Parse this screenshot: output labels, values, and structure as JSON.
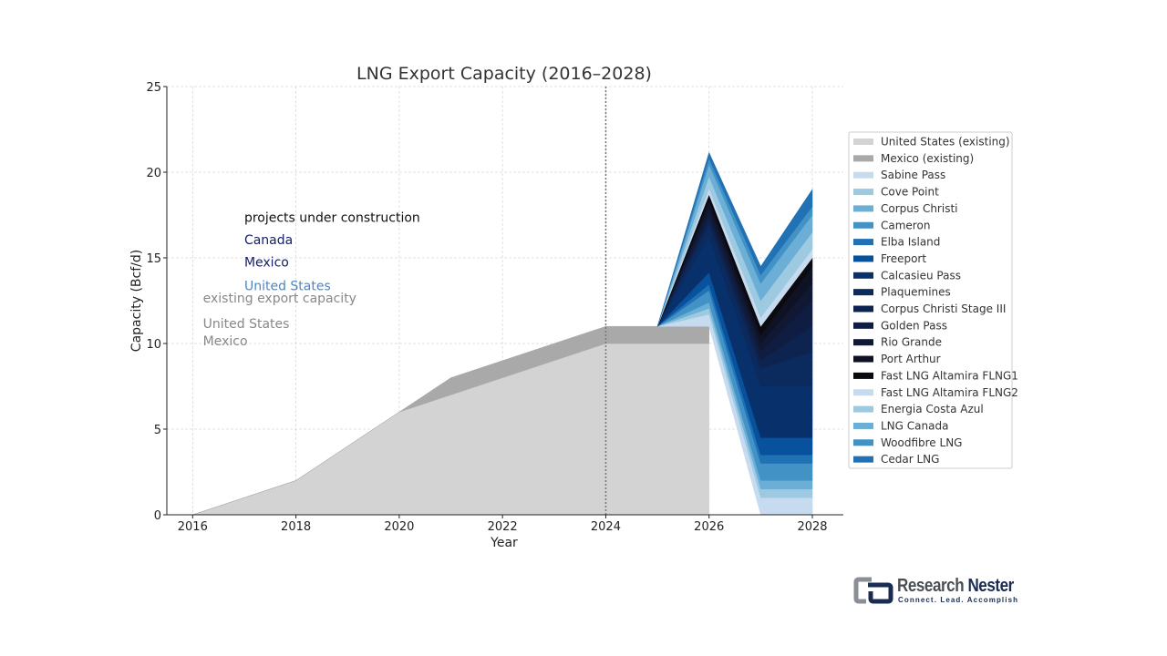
{
  "chart_data": {
    "type": "area",
    "title": "LNG Export Capacity (2016–2028)",
    "xlabel": "Year",
    "ylabel": "Capacity (Bcf/d)",
    "xlim": [
      2015.5,
      2028.6
    ],
    "ylim": [
      0,
      25
    ],
    "x_ticks": [
      "2016",
      "2018",
      "2020",
      "2022",
      "2024",
      "2026",
      "2028"
    ],
    "y_ticks": [
      "0",
      "5",
      "10",
      "15",
      "20",
      "25"
    ],
    "grid": true,
    "vline_x": 2024,
    "legend_position": "right",
    "annotations": [
      {
        "text": "projects under construction",
        "x": 2017,
        "y": 17.1,
        "color": "#111111"
      },
      {
        "text": "Canada",
        "x": 2017,
        "y": 15.8,
        "color": "#131d6b"
      },
      {
        "text": "Mexico",
        "x": 2017,
        "y": 14.5,
        "color": "#131d6b"
      },
      {
        "text": "United States",
        "x": 2017,
        "y": 13.1,
        "color": "#4a86c5"
      },
      {
        "text": "existing export capacity",
        "x": 2016.2,
        "y": 12.4,
        "color": "#888888"
      },
      {
        "text": "United States",
        "x": 2016.2,
        "y": 10.9,
        "color": "#888888"
      },
      {
        "text": "Mexico",
        "x": 2016.2,
        "y": 9.9,
        "color": "#888888"
      }
    ],
    "years": [
      2016,
      2017,
      2018,
      2019,
      2020,
      2021,
      2022,
      2023,
      2024,
      2025,
      2026,
      2027,
      2028
    ],
    "series": [
      {
        "name": "United States (existing)",
        "color": "#d3d3d3",
        "values": [
          0,
          1,
          2,
          4,
          6,
          7,
          8,
          9,
          10,
          10,
          10,
          null,
          null
        ]
      },
      {
        "name": "Mexico (existing)",
        "color": "#a9a9a9",
        "values": [
          0,
          0,
          0,
          0,
          0,
          1,
          1,
          1,
          1,
          1,
          1,
          null,
          null
        ]
      },
      {
        "name": "Sabine Pass",
        "color": "#c6dbef",
        "values": [
          null,
          null,
          null,
          null,
          null,
          null,
          null,
          null,
          null,
          0,
          0.7,
          1.0,
          1.0
        ]
      },
      {
        "name": "Cove Point",
        "color": "#9ecae1",
        "values": [
          null,
          null,
          null,
          null,
          null,
          null,
          null,
          null,
          null,
          0,
          0.35,
          0.5,
          0.5
        ]
      },
      {
        "name": "Corpus Christi",
        "color": "#6baed6",
        "values": [
          null,
          null,
          null,
          null,
          null,
          null,
          null,
          null,
          null,
          0,
          0.35,
          0.5,
          0.5
        ]
      },
      {
        "name": "Cameron",
        "color": "#4292c6",
        "values": [
          null,
          null,
          null,
          null,
          null,
          null,
          null,
          null,
          null,
          0,
          0.7,
          1.0,
          1.0
        ]
      },
      {
        "name": "Elba Island",
        "color": "#2171b5",
        "values": [
          null,
          null,
          null,
          null,
          null,
          null,
          null,
          null,
          null,
          0,
          0.35,
          0.5,
          0.5
        ]
      },
      {
        "name": "Freeport",
        "color": "#08519c",
        "values": [
          null,
          null,
          null,
          null,
          null,
          null,
          null,
          null,
          null,
          0,
          0.7,
          1.0,
          1.0
        ]
      },
      {
        "name": "Calcasieu Pass",
        "color": "#08306b",
        "values": [
          null,
          null,
          null,
          null,
          null,
          null,
          null,
          null,
          null,
          0,
          2.1,
          3.0,
          3.0
        ]
      },
      {
        "name": "Plaquemines",
        "color": "#0b2a5e",
        "values": [
          null,
          null,
          null,
          null,
          null,
          null,
          null,
          null,
          null,
          0,
          0.7,
          1.0,
          2.0
        ]
      },
      {
        "name": "Corpus Christi Stage III",
        "color": "#0e2450",
        "values": [
          null,
          null,
          null,
          null,
          null,
          null,
          null,
          null,
          null,
          0,
          0.35,
          0.5,
          1.5
        ]
      },
      {
        "name": "Golden Pass",
        "color": "#101d42",
        "values": [
          null,
          null,
          null,
          null,
          null,
          null,
          null,
          null,
          null,
          0,
          0.35,
          0.5,
          1.5
        ]
      },
      {
        "name": "Rio Grande",
        "color": "#111834",
        "values": [
          null,
          null,
          null,
          null,
          null,
          null,
          null,
          null,
          null,
          0,
          0.35,
          0.5,
          1.0
        ]
      },
      {
        "name": "Port Arthur",
        "color": "#0f1224",
        "values": [
          null,
          null,
          null,
          null,
          null,
          null,
          null,
          null,
          null,
          0,
          0.35,
          0.5,
          1.0
        ]
      },
      {
        "name": "Fast LNG Altamira FLNG1",
        "color": "#0a0a0f",
        "values": [
          null,
          null,
          null,
          null,
          null,
          null,
          null,
          null,
          null,
          0,
          0.35,
          0.5,
          0.5
        ]
      },
      {
        "name": "Fast LNG Altamira FLNG2",
        "color": "#c6dbef",
        "values": [
          null,
          null,
          null,
          null,
          null,
          null,
          null,
          null,
          null,
          0,
          0.35,
          0.5,
          0.5
        ]
      },
      {
        "name": "Energia Costa Azul",
        "color": "#9ecae1",
        "values": [
          null,
          null,
          null,
          null,
          null,
          null,
          null,
          null,
          null,
          0,
          0.7,
          1.0,
          1.0
        ]
      },
      {
        "name": "LNG Canada",
        "color": "#6baed6",
        "values": [
          null,
          null,
          null,
          null,
          null,
          null,
          null,
          null,
          null,
          0,
          0.7,
          1.0,
          1.0
        ]
      },
      {
        "name": "Woodfibre LNG",
        "color": "#4292c6",
        "values": [
          null,
          null,
          null,
          null,
          null,
          null,
          null,
          null,
          null,
          0,
          0.35,
          0.5,
          0.5
        ]
      },
      {
        "name": "Cedar LNG",
        "color": "#2171b5",
        "values": [
          null,
          null,
          null,
          null,
          null,
          null,
          null,
          null,
          null,
          0,
          0.35,
          0.5,
          1.0
        ]
      }
    ]
  },
  "logo": {
    "brand_part1": "Research ",
    "brand_part2": "Nester",
    "tagline": "Connect. Lead. Accomplish"
  }
}
